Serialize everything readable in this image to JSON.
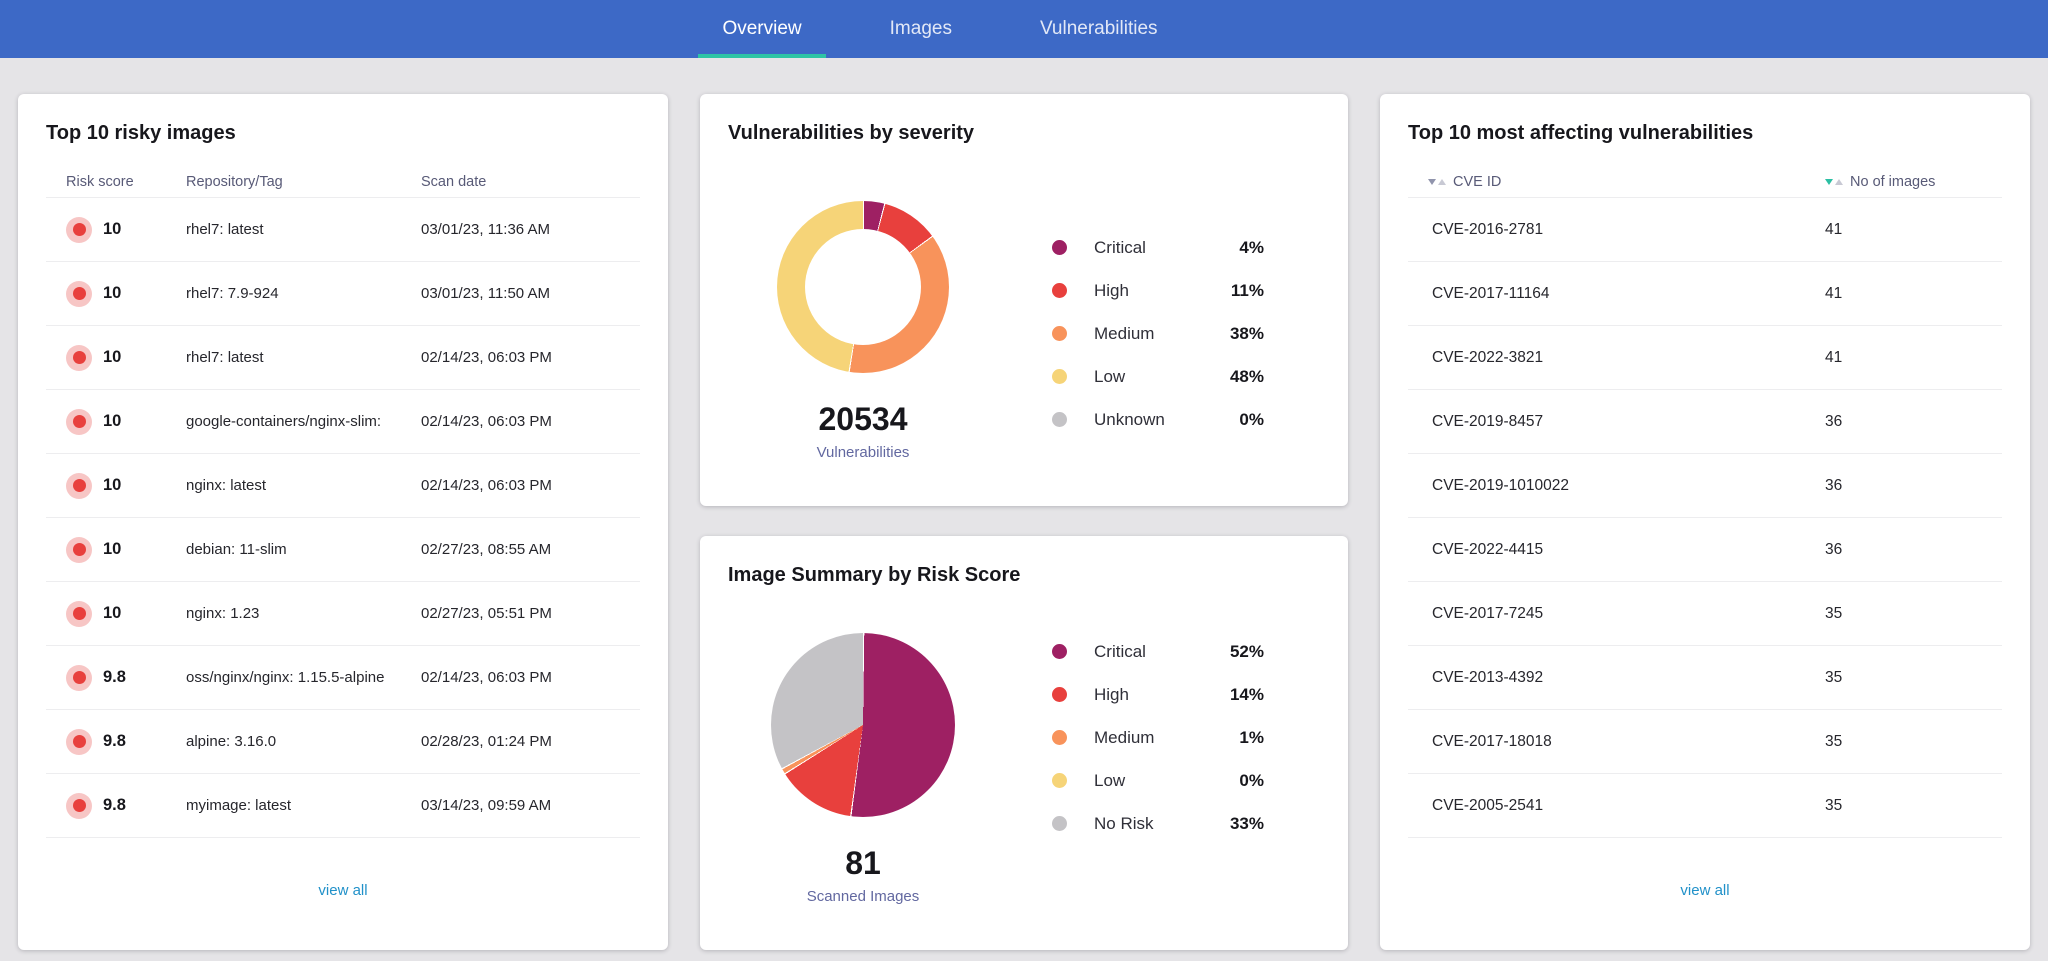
{
  "nav": {
    "tabs": [
      {
        "label": "Overview",
        "active": true
      },
      {
        "label": "Images",
        "active": false
      },
      {
        "label": "Vulnerabilities",
        "active": false
      }
    ]
  },
  "colors": {
    "navbar_blue": "#3D69C6",
    "active_tab_underline_teal": "#2EC4A5",
    "link_blue": "#2191C9",
    "sort_active_teal": "#2BBFA3",
    "risk_dot_red": "#E8403D",
    "risk_dot_halo": "#F7C6C5"
  },
  "risky_images": {
    "title": "Top 10 risky images",
    "columns": {
      "score": "Risk score",
      "repo": "Repository/Tag",
      "date": "Scan date"
    },
    "rows": [
      {
        "score": "10",
        "repo": "rhel7: latest",
        "date": "03/01/23, 11:36 AM"
      },
      {
        "score": "10",
        "repo": "rhel7: 7.9-924",
        "date": "03/01/23, 11:50 AM"
      },
      {
        "score": "10",
        "repo": "rhel7: latest",
        "date": "02/14/23, 06:03 PM"
      },
      {
        "score": "10",
        "repo": "google-containers/nginx-slim:",
        "date": "02/14/23, 06:03 PM"
      },
      {
        "score": "10",
        "repo": "nginx: latest",
        "date": "02/14/23, 06:03 PM"
      },
      {
        "score": "10",
        "repo": "debian: 11-slim",
        "date": "02/27/23, 08:55 AM"
      },
      {
        "score": "10",
        "repo": "nginx: 1.23",
        "date": "02/27/23, 05:51 PM"
      },
      {
        "score": "9.8",
        "repo": "oss/nginx/nginx: 1.15.5-alpine",
        "date": "02/14/23, 06:03 PM"
      },
      {
        "score": "9.8",
        "repo": "alpine: 3.16.0",
        "date": "02/28/23, 01:24 PM"
      },
      {
        "score": "9.8",
        "repo": "myimage: latest",
        "date": "03/14/23, 09:59 AM"
      }
    ],
    "view_all": "view all"
  },
  "top_vulnerabilities": {
    "title": "Top 10 most affecting vulnerabilities",
    "columns": {
      "cve": "CVE ID",
      "images": "No of images"
    },
    "sorted_by": "No of images",
    "rows": [
      {
        "cve": "CVE-2016-2781",
        "count": "41"
      },
      {
        "cve": "CVE-2017-11164",
        "count": "41"
      },
      {
        "cve": "CVE-2022-3821",
        "count": "41"
      },
      {
        "cve": "CVE-2019-8457",
        "count": "36"
      },
      {
        "cve": "CVE-2019-1010022",
        "count": "36"
      },
      {
        "cve": "CVE-2022-4415",
        "count": "36"
      },
      {
        "cve": "CVE-2017-7245",
        "count": "35"
      },
      {
        "cve": "CVE-2013-4392",
        "count": "35"
      },
      {
        "cve": "CVE-2017-18018",
        "count": "35"
      },
      {
        "cve": "CVE-2005-2541",
        "count": "35"
      }
    ],
    "view_all": "view all"
  },
  "chart_data": [
    {
      "type": "pie",
      "variant": "donut",
      "title": "Vulnerabilities by severity",
      "total": 20534,
      "total_label": "Vulnerabilities",
      "legend_position": "right",
      "slices": [
        {
          "label": "Critical",
          "pct": 4,
          "pct_label": "4%",
          "color": "#9E2063"
        },
        {
          "label": "High",
          "pct": 11,
          "pct_label": "11%",
          "color": "#E8403D"
        },
        {
          "label": "Medium",
          "pct": 38,
          "pct_label": "38%",
          "color": "#F8935B"
        },
        {
          "label": "Low",
          "pct": 48,
          "pct_label": "48%",
          "color": "#F6D478"
        },
        {
          "label": "Unknown",
          "pct": 0,
          "pct_label": "0%",
          "color": "#C4C3C6"
        }
      ]
    },
    {
      "type": "pie",
      "variant": "pie",
      "title": "Image Summary by Risk Score",
      "total": 81,
      "total_label": "Scanned Images",
      "legend_position": "right",
      "slices": [
        {
          "label": "Critical",
          "pct": 52,
          "pct_label": "52%",
          "color": "#9E2063"
        },
        {
          "label": "High",
          "pct": 14,
          "pct_label": "14%",
          "color": "#E8403D"
        },
        {
          "label": "Medium",
          "pct": 1,
          "pct_label": "1%",
          "color": "#F8935B"
        },
        {
          "label": "Low",
          "pct": 0,
          "pct_label": "0%",
          "color": "#F6D478"
        },
        {
          "label": "No Risk",
          "pct": 33,
          "pct_label": "33%",
          "color": "#C4C3C6"
        }
      ]
    }
  ]
}
